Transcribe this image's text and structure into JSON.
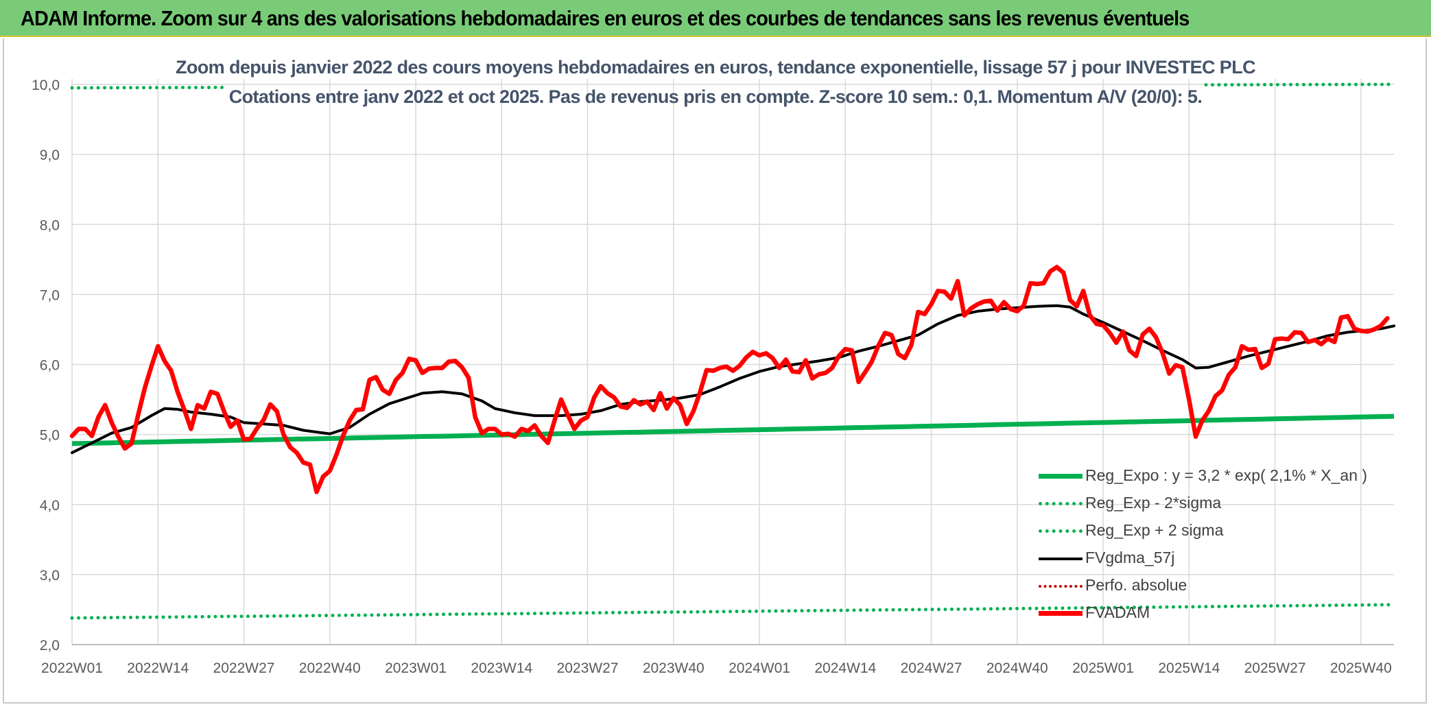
{
  "header": {
    "title": "ADAM Informe. Zoom sur 4 ans des valorisations hebdomadaires en euros et des courbes de tendances sans les revenus éventuels"
  },
  "colors": {
    "header_bg": "#7acb78",
    "regression": "#00b050",
    "fvgdma": "#000000",
    "fvadam": "#ff0000",
    "perfo": "#c00000",
    "subtitle": "#44546a",
    "grid": "#d9d9d9"
  },
  "chart_data": {
    "type": "line",
    "title_line1": "Zoom depuis janvier 2022 des cours moyens hebdomadaires en euros, tendance exponentielle, lissage 57 j pour INVESTEC PLC",
    "title_line2": "Cotations entre janv 2022 et oct 2025. Pas de revenus pris en compte. Z-score 10 sem.: 0,1. Momentum A/V (20/0): 5.",
    "xlabel": "",
    "ylabel": "",
    "ylim": [
      2.0,
      10.0
    ],
    "y_ticks": [
      "2,0",
      "3,0",
      "4,0",
      "5,0",
      "6,0",
      "7,0",
      "8,0",
      "9,0",
      "10,0"
    ],
    "x_ticks": [
      "2022W01",
      "2022W14",
      "2022W27",
      "2022W40",
      "2023W01",
      "2023W14",
      "2023W27",
      "2023W40",
      "2024W01",
      "2024W14",
      "2024W27",
      "2024W40",
      "2025W01",
      "2025W14",
      "2025W27",
      "2025W40"
    ],
    "x_tick_week_index": [
      0,
      13,
      26,
      39,
      52,
      65,
      78,
      91,
      104,
      117,
      130,
      143,
      156,
      169,
      182,
      195
    ],
    "n_weeks": 201,
    "legend": [
      "Reg_Expo : y = 3,2 * exp( 2,1% *  X_an )",
      "Reg_Exp - 2*sigma",
      "Reg_Exp + 2 sigma",
      "FVgdma_57j",
      "Perfo. absolue",
      "FVADAM"
    ],
    "series": [
      {
        "name": "Reg_Expo : y = 3,2 * exp( 2,1% *  X_an )",
        "style": "solid-thick",
        "start": 4.87,
        "end": 5.26
      },
      {
        "name": "Reg_Exp - 2*sigma",
        "style": "dotted",
        "start": 2.38,
        "end": 2.57
      },
      {
        "name": "Reg_Exp + 2 sigma",
        "style": "dotted",
        "start": 9.95,
        "end": 10.0
      },
      {
        "name": "FVgdma_57j",
        "style": "solid",
        "points": [
          [
            0,
            4.74
          ],
          [
            3,
            4.88
          ],
          [
            6,
            5.02
          ],
          [
            9,
            5.1
          ],
          [
            12,
            5.27
          ],
          [
            14,
            5.37
          ],
          [
            16,
            5.36
          ],
          [
            18,
            5.32
          ],
          [
            21,
            5.29
          ],
          [
            24,
            5.25
          ],
          [
            26,
            5.17
          ],
          [
            29,
            5.15
          ],
          [
            32,
            5.13
          ],
          [
            35,
            5.06
          ],
          [
            39,
            5.01
          ],
          [
            42,
            5.1
          ],
          [
            45,
            5.29
          ],
          [
            48,
            5.44
          ],
          [
            51,
            5.53
          ],
          [
            53,
            5.59
          ],
          [
            56,
            5.61
          ],
          [
            59,
            5.58
          ],
          [
            62,
            5.48
          ],
          [
            64,
            5.37
          ],
          [
            67,
            5.31
          ],
          [
            70,
            5.27
          ],
          [
            74,
            5.27
          ],
          [
            77,
            5.29
          ],
          [
            80,
            5.34
          ],
          [
            83,
            5.43
          ],
          [
            86,
            5.47
          ],
          [
            89,
            5.49
          ],
          [
            92,
            5.52
          ],
          [
            95,
            5.57
          ],
          [
            98,
            5.68
          ],
          [
            101,
            5.8
          ],
          [
            104,
            5.9
          ],
          [
            107,
            5.97
          ],
          [
            110,
            6.01
          ],
          [
            113,
            6.05
          ],
          [
            116,
            6.1
          ],
          [
            119,
            6.19
          ],
          [
            122,
            6.26
          ],
          [
            125,
            6.34
          ],
          [
            128,
            6.42
          ],
          [
            131,
            6.58
          ],
          [
            134,
            6.7
          ],
          [
            137,
            6.76
          ],
          [
            140,
            6.79
          ],
          [
            143,
            6.81
          ],
          [
            146,
            6.83
          ],
          [
            149,
            6.84
          ],
          [
            151,
            6.82
          ],
          [
            153,
            6.72
          ],
          [
            156,
            6.6
          ],
          [
            159,
            6.47
          ],
          [
            162,
            6.34
          ],
          [
            165,
            6.2
          ],
          [
            168,
            6.07
          ],
          [
            170,
            5.95
          ],
          [
            172,
            5.96
          ],
          [
            175,
            6.04
          ],
          [
            178,
            6.12
          ],
          [
            181,
            6.19
          ],
          [
            184,
            6.26
          ],
          [
            187,
            6.33
          ],
          [
            190,
            6.41
          ],
          [
            193,
            6.46
          ],
          [
            196,
            6.49
          ],
          [
            198,
            6.51
          ],
          [
            200,
            6.55
          ]
        ]
      },
      {
        "name": "Perfo. absolue",
        "style": "dotted",
        "points": []
      },
      {
        "name": "FVADAM",
        "style": "solid-thick",
        "points": [
          [
            0,
            4.98
          ],
          [
            1,
            5.08
          ],
          [
            2,
            5.08
          ],
          [
            3,
            4.98
          ],
          [
            4,
            5.25
          ],
          [
            5,
            5.42
          ],
          [
            6,
            5.17
          ],
          [
            7,
            4.97
          ],
          [
            8,
            4.8
          ],
          [
            9,
            4.87
          ],
          [
            10,
            5.28
          ],
          [
            11,
            5.66
          ],
          [
            12,
            5.97
          ],
          [
            13,
            6.26
          ],
          [
            14,
            6.05
          ],
          [
            15,
            5.91
          ],
          [
            16,
            5.6
          ],
          [
            17,
            5.35
          ],
          [
            18,
            5.08
          ],
          [
            19,
            5.42
          ],
          [
            20,
            5.37
          ],
          [
            21,
            5.61
          ],
          [
            22,
            5.58
          ],
          [
            23,
            5.33
          ],
          [
            24,
            5.11
          ],
          [
            25,
            5.2
          ],
          [
            26,
            4.93
          ],
          [
            27,
            4.94
          ],
          [
            28,
            5.09
          ],
          [
            29,
            5.21
          ],
          [
            30,
            5.43
          ],
          [
            31,
            5.33
          ],
          [
            32,
            5.0
          ],
          [
            33,
            4.82
          ],
          [
            34,
            4.74
          ],
          [
            35,
            4.6
          ],
          [
            36,
            4.57
          ],
          [
            37,
            4.18
          ],
          [
            38,
            4.4
          ],
          [
            39,
            4.48
          ],
          [
            40,
            4.71
          ],
          [
            41,
            4.98
          ],
          [
            42,
            5.2
          ],
          [
            43,
            5.35
          ],
          [
            44,
            5.36
          ],
          [
            45,
            5.78
          ],
          [
            46,
            5.82
          ],
          [
            47,
            5.64
          ],
          [
            48,
            5.58
          ],
          [
            49,
            5.78
          ],
          [
            50,
            5.88
          ],
          [
            51,
            6.08
          ],
          [
            52,
            6.06
          ],
          [
            53,
            5.88
          ],
          [
            54,
            5.94
          ],
          [
            55,
            5.95
          ],
          [
            56,
            5.95
          ],
          [
            57,
            6.04
          ],
          [
            58,
            6.05
          ],
          [
            59,
            5.96
          ],
          [
            60,
            5.81
          ],
          [
            61,
            5.25
          ],
          [
            62,
            5.02
          ],
          [
            63,
            5.08
          ],
          [
            64,
            5.08
          ],
          [
            65,
            5.0
          ],
          [
            66,
            5.01
          ],
          [
            67,
            4.97
          ],
          [
            68,
            5.08
          ],
          [
            69,
            5.05
          ],
          [
            70,
            5.13
          ],
          [
            71,
            4.98
          ],
          [
            72,
            4.88
          ],
          [
            73,
            5.2
          ],
          [
            74,
            5.5
          ],
          [
            75,
            5.28
          ],
          [
            76,
            5.08
          ],
          [
            77,
            5.2
          ],
          [
            78,
            5.25
          ],
          [
            79,
            5.53
          ],
          [
            80,
            5.69
          ],
          [
            81,
            5.59
          ],
          [
            82,
            5.53
          ],
          [
            83,
            5.4
          ],
          [
            84,
            5.38
          ],
          [
            85,
            5.49
          ],
          [
            86,
            5.43
          ],
          [
            87,
            5.47
          ],
          [
            88,
            5.35
          ],
          [
            89,
            5.59
          ],
          [
            90,
            5.37
          ],
          [
            91,
            5.52
          ],
          [
            92,
            5.42
          ],
          [
            93,
            5.15
          ],
          [
            94,
            5.33
          ],
          [
            95,
            5.6
          ],
          [
            96,
            5.92
          ],
          [
            97,
            5.91
          ],
          [
            98,
            5.95
          ],
          [
            99,
            5.97
          ],
          [
            100,
            5.91
          ],
          [
            101,
            5.98
          ],
          [
            102,
            6.1
          ],
          [
            103,
            6.18
          ],
          [
            104,
            6.13
          ],
          [
            105,
            6.16
          ],
          [
            106,
            6.09
          ],
          [
            107,
            5.95
          ],
          [
            108,
            6.07
          ],
          [
            109,
            5.9
          ],
          [
            110,
            5.89
          ],
          [
            111,
            6.06
          ],
          [
            112,
            5.8
          ],
          [
            113,
            5.86
          ],
          [
            114,
            5.88
          ],
          [
            115,
            5.95
          ],
          [
            116,
            6.12
          ],
          [
            117,
            6.22
          ],
          [
            118,
            6.2
          ],
          [
            119,
            5.75
          ],
          [
            120,
            5.89
          ],
          [
            121,
            6.04
          ],
          [
            122,
            6.27
          ],
          [
            123,
            6.45
          ],
          [
            124,
            6.42
          ],
          [
            125,
            6.15
          ],
          [
            126,
            6.09
          ],
          [
            127,
            6.28
          ],
          [
            128,
            6.75
          ],
          [
            129,
            6.72
          ],
          [
            130,
            6.86
          ],
          [
            131,
            7.05
          ],
          [
            132,
            7.04
          ],
          [
            133,
            6.94
          ],
          [
            134,
            7.19
          ],
          [
            135,
            6.7
          ],
          [
            136,
            6.8
          ],
          [
            137,
            6.86
          ],
          [
            138,
            6.9
          ],
          [
            139,
            6.91
          ],
          [
            140,
            6.77
          ],
          [
            141,
            6.89
          ],
          [
            142,
            6.79
          ],
          [
            143,
            6.76
          ],
          [
            144,
            6.84
          ],
          [
            145,
            7.16
          ],
          [
            146,
            7.15
          ],
          [
            147,
            7.16
          ],
          [
            148,
            7.33
          ],
          [
            149,
            7.39
          ],
          [
            150,
            7.31
          ],
          [
            151,
            6.92
          ],
          [
            152,
            6.83
          ],
          [
            153,
            7.05
          ],
          [
            154,
            6.7
          ],
          [
            155,
            6.58
          ],
          [
            156,
            6.56
          ],
          [
            157,
            6.45
          ],
          [
            158,
            6.31
          ],
          [
            159,
            6.47
          ],
          [
            160,
            6.2
          ],
          [
            161,
            6.12
          ],
          [
            162,
            6.43
          ],
          [
            163,
            6.51
          ],
          [
            164,
            6.39
          ],
          [
            165,
            6.16
          ],
          [
            166,
            5.87
          ],
          [
            167,
            5.99
          ],
          [
            168,
            5.96
          ],
          [
            169,
            5.5
          ],
          [
            170,
            4.97
          ],
          [
            171,
            5.2
          ],
          [
            172,
            5.34
          ],
          [
            173,
            5.55
          ],
          [
            174,
            5.63
          ],
          [
            175,
            5.85
          ],
          [
            176,
            5.96
          ],
          [
            177,
            6.26
          ],
          [
            178,
            6.21
          ],
          [
            179,
            6.22
          ],
          [
            180,
            5.95
          ],
          [
            181,
            6.01
          ],
          [
            182,
            6.36
          ],
          [
            183,
            6.37
          ],
          [
            184,
            6.36
          ],
          [
            185,
            6.46
          ],
          [
            186,
            6.45
          ],
          [
            187,
            6.32
          ],
          [
            188,
            6.35
          ],
          [
            189,
            6.29
          ],
          [
            190,
            6.37
          ],
          [
            191,
            6.32
          ],
          [
            192,
            6.67
          ],
          [
            193,
            6.69
          ],
          [
            194,
            6.51
          ],
          [
            195,
            6.48
          ],
          [
            196,
            6.47
          ],
          [
            197,
            6.5
          ],
          [
            198,
            6.55
          ],
          [
            199,
            6.66
          ]
        ]
      }
    ]
  }
}
